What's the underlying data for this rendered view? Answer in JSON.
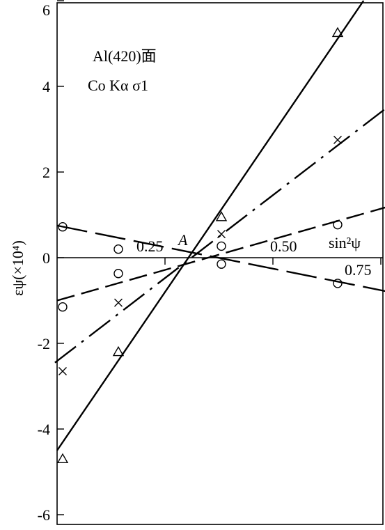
{
  "chart_data": {
    "type": "scatter",
    "title": "",
    "annotations": [
      "Al(420)面",
      "Co Kα σ1",
      "A"
    ],
    "xlabel": "sin²ψ",
    "ylabel": "εψ(×10⁴)",
    "xlim": [
      0,
      0.77
    ],
    "ylim": [
      -6,
      6
    ],
    "xticks": [
      0.25,
      0.5,
      0.75
    ],
    "xtick_labels": [
      "0.25",
      "0.50",
      "0.75"
    ],
    "yticks": [
      -6,
      -4,
      -2,
      0,
      2,
      4,
      6
    ],
    "ytick_labels": [
      "-6",
      "-4",
      "-2",
      "0",
      "2",
      "4",
      "6"
    ],
    "grid": false,
    "series": [
      {
        "marker": "triangle",
        "line_style": "solid",
        "points": [
          [
            0.0,
            -4.7
          ],
          [
            0.13,
            -2.2
          ],
          [
            0.38,
            0.95
          ],
          [
            0.65,
            5.25
          ]
        ],
        "fit_line": [
          [
            0.0,
            -4.5
          ],
          [
            0.71,
            6.0
          ]
        ]
      },
      {
        "marker": "cross",
        "line_style": "dash-dot",
        "points": [
          [
            0.0,
            -2.65
          ],
          [
            0.13,
            -1.05
          ],
          [
            0.38,
            0.55
          ],
          [
            0.65,
            2.75
          ]
        ],
        "fit_line": [
          [
            -0.005,
            -2.45
          ],
          [
            0.77,
            3.55
          ]
        ]
      },
      {
        "marker": "circle",
        "line_style": "dashed",
        "points": [
          [
            0.0,
            -1.15
          ],
          [
            0.13,
            -0.37
          ],
          [
            0.38,
            0.27
          ],
          [
            0.65,
            0.77
          ]
        ],
        "fit_line": [
          [
            0.0,
            -1.0
          ],
          [
            0.77,
            1.2
          ]
        ]
      },
      {
        "marker": "circle",
        "line_style": "long-dash",
        "points": [
          [
            0.0,
            0.72
          ],
          [
            0.13,
            0.2
          ],
          [
            0.38,
            -0.15
          ],
          [
            0.65,
            -0.6
          ]
        ],
        "fit_line": [
          [
            0.0,
            0.75
          ],
          [
            0.77,
            -0.8
          ]
        ]
      }
    ],
    "intersection_point": [
      0.28,
      0
    ]
  }
}
